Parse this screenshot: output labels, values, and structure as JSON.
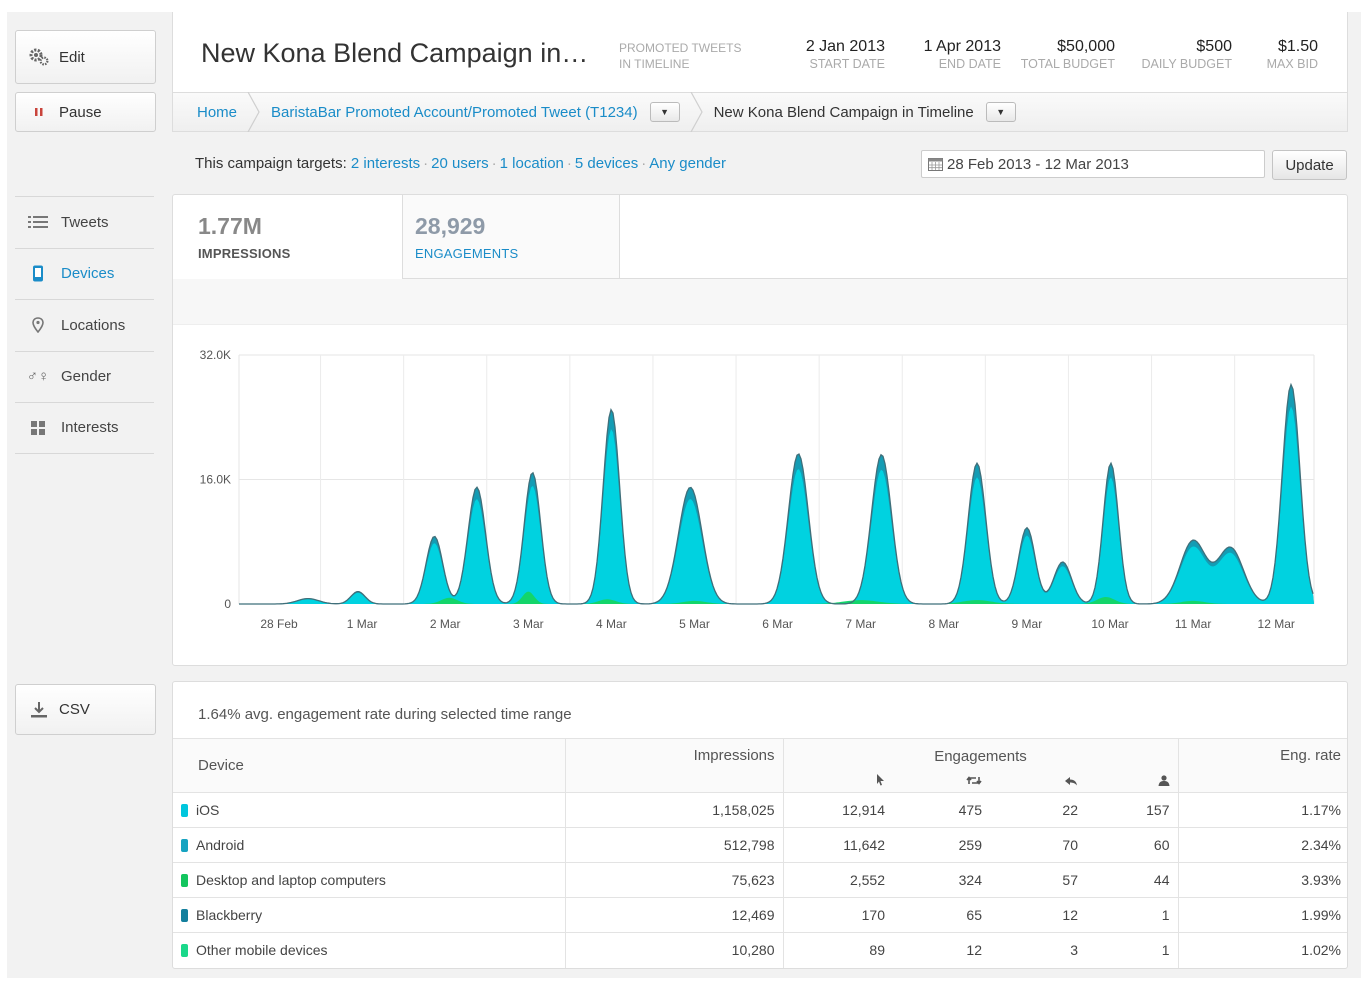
{
  "sidebar": {
    "edit_label": "Edit",
    "pause_label": "Pause",
    "nav": [
      {
        "label": "Tweets",
        "icon": "list-icon"
      },
      {
        "label": "Devices",
        "icon": "phone-icon"
      },
      {
        "label": "Locations",
        "icon": "pin-icon"
      },
      {
        "label": "Gender",
        "icon": "gender-icon"
      },
      {
        "label": "Interests",
        "icon": "grid-icon"
      }
    ],
    "csv_label": "CSV"
  },
  "header": {
    "title": "New Kona Blend Campaign in…",
    "type_line1": "PROMOTED TWEETS",
    "type_line2": "IN TIMELINE",
    "start_date": {
      "value": "2 Jan 2013",
      "label": "START DATE"
    },
    "end_date": {
      "value": "1 Apr 2013",
      "label": "END DATE"
    },
    "total_budget": {
      "value": "$50,000",
      "label": "TOTAL BUDGET"
    },
    "daily_budget": {
      "value": "$500",
      "label": "DAILY BUDGET"
    },
    "max_bid": {
      "value": "$1.50",
      "label": "MAX BID"
    }
  },
  "breadcrumb": {
    "home": "Home",
    "account": "BaristaBar Promoted Account/Promoted Tweet (T1234)",
    "campaign": "New Kona Blend Campaign in Timeline"
  },
  "targets": {
    "prefix": "This campaign targets:",
    "interests": "2 interests",
    "users": "20 users",
    "location": "1 location",
    "devices": "5 devices",
    "gender": "Any gender"
  },
  "date_range": "28 Feb 2013 - 12 Mar 2013",
  "update_label": "Update",
  "metrics": {
    "impressions": {
      "value": "1.77M",
      "label": "IMPRESSIONS"
    },
    "engagements": {
      "value": "28,929",
      "label": "ENGAGEMENTS"
    }
  },
  "colors": {
    "cyan": "#00d2e0",
    "cyan_dark": "#149cb4",
    "green": "#13d56a",
    "link": "#1a8cc8"
  },
  "chart_data": {
    "type": "area",
    "title": "",
    "ylim": [
      0,
      32000
    ],
    "y_ticks": [
      "32.0K",
      "16.0K",
      "0"
    ],
    "x_labels": [
      "28 Feb",
      "1 Mar",
      "2 Mar",
      "3 Mar",
      "4 Mar",
      "5 Mar",
      "6 Mar",
      "7 Mar",
      "8 Mar",
      "9 Mar",
      "10 Mar",
      "11 Mar",
      "12 Mar"
    ],
    "peaks": [
      {
        "day": 0.35,
        "value": 700,
        "width": 0.18
      },
      {
        "day": 0.95,
        "value": 1600,
        "width": 0.12
      },
      {
        "day": 1.87,
        "value": 8700,
        "width": 0.14
      },
      {
        "day": 2.38,
        "value": 15000,
        "width": 0.15
      },
      {
        "day": 3.05,
        "value": 16900,
        "width": 0.14
      },
      {
        "day": 4.0,
        "value": 25000,
        "width": 0.14
      },
      {
        "day": 4.95,
        "value": 15000,
        "width": 0.2
      },
      {
        "day": 6.25,
        "value": 19300,
        "width": 0.17
      },
      {
        "day": 7.25,
        "value": 19200,
        "width": 0.17
      },
      {
        "day": 8.4,
        "value": 18100,
        "width": 0.15
      },
      {
        "day": 9.0,
        "value": 9800,
        "width": 0.14
      },
      {
        "day": 9.43,
        "value": 5400,
        "width": 0.15
      },
      {
        "day": 10.01,
        "value": 18100,
        "width": 0.13
      },
      {
        "day": 11.0,
        "value": 8100,
        "width": 0.22
      },
      {
        "day": 11.45,
        "value": 7200,
        "width": 0.22
      },
      {
        "day": 12.18,
        "value": 28200,
        "width": 0.15
      }
    ],
    "green_peaks": [
      {
        "day": 2.05,
        "value": 800,
        "width": 0.14
      },
      {
        "day": 3.0,
        "value": 1600,
        "width": 0.1
      },
      {
        "day": 3.95,
        "value": 600,
        "width": 0.15
      },
      {
        "day": 5.0,
        "value": 400,
        "width": 0.2
      },
      {
        "day": 7.0,
        "value": 500,
        "width": 0.3
      },
      {
        "day": 8.4,
        "value": 500,
        "width": 0.25
      },
      {
        "day": 9.95,
        "value": 900,
        "width": 0.15
      },
      {
        "day": 11.0,
        "value": 400,
        "width": 0.2
      }
    ]
  },
  "table": {
    "avg_rate_text": "1.64% avg. engagement rate during selected time range",
    "headers": {
      "device": "Device",
      "impressions": "Impressions",
      "engagements": "Engagements",
      "eng_rate": "Eng. rate"
    },
    "rows": [
      {
        "device": "iOS",
        "color": "#00c6dd",
        "impressions": "1,158,025",
        "clicks": "12,914",
        "retweets": "475",
        "replies": "22",
        "follows": "157",
        "rate": "1.17%"
      },
      {
        "device": "Android",
        "color": "#16a3c1",
        "impressions": "512,798",
        "clicks": "11,642",
        "retweets": "259",
        "replies": "70",
        "follows": "60",
        "rate": "2.34%"
      },
      {
        "device": "Desktop and laptop computers",
        "color": "#13c55e",
        "impressions": "75,623",
        "clicks": "2,552",
        "retweets": "324",
        "replies": "57",
        "follows": "44",
        "rate": "3.93%"
      },
      {
        "device": "Blackberry",
        "color": "#137f9d",
        "impressions": "12,469",
        "clicks": "170",
        "retweets": "65",
        "replies": "12",
        "follows": "1",
        "rate": "1.99%"
      },
      {
        "device": "Other mobile devices",
        "color": "#1ad88a",
        "impressions": "10,280",
        "clicks": "89",
        "retweets": "12",
        "replies": "3",
        "follows": "1",
        "rate": "1.02%"
      }
    ]
  }
}
